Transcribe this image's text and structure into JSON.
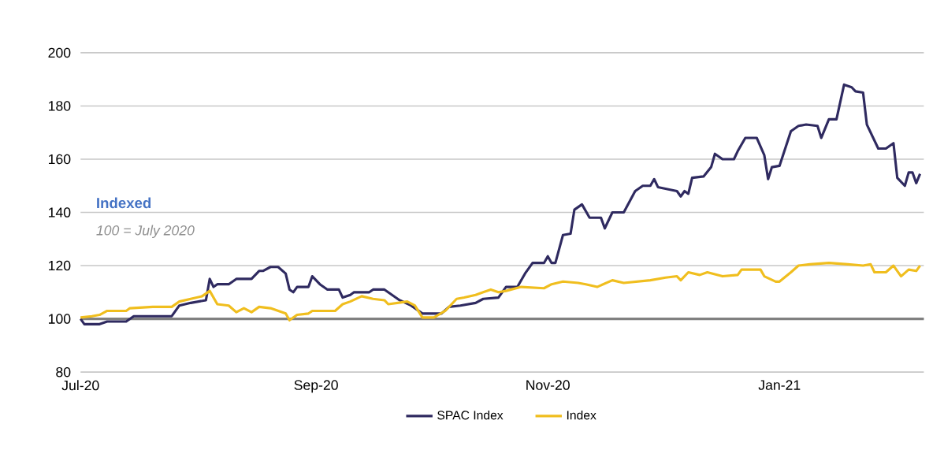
{
  "chart_data": {
    "type": "line",
    "annotations": [
      "Indexed",
      "100 = July 2020"
    ],
    "xlim": [
      "2020-07-01",
      "2021-02-08"
    ],
    "xticks": [
      {
        "value": "2020-07-01",
        "label": "Jul-20"
      },
      {
        "value": "2020-09-01",
        "label": "Sep-20"
      },
      {
        "value": "2020-11-01",
        "label": "Nov-20"
      },
      {
        "value": "2021-01-01",
        "label": "Jan-21"
      }
    ],
    "ylim": [
      80,
      200
    ],
    "yticks": [
      80,
      100,
      120,
      140,
      160,
      180,
      200
    ],
    "grid": "y",
    "legend": "bottom",
    "line_style": "solid",
    "ref_lines": [
      {
        "axis": "y",
        "value": 100,
        "color": "#808080"
      }
    ],
    "series": [
      {
        "name": "SPAC Index",
        "color": "#2f2a60",
        "x": [
          "2020-07-01",
          "2020-07-02",
          "2020-07-06",
          "2020-07-08",
          "2020-07-13",
          "2020-07-15",
          "2020-07-19",
          "2020-07-25",
          "2020-07-27",
          "2020-07-30",
          "2020-08-03",
          "2020-08-04",
          "2020-08-05",
          "2020-08-06",
          "2020-08-09",
          "2020-08-11",
          "2020-08-15",
          "2020-08-17",
          "2020-08-18",
          "2020-08-20",
          "2020-08-22",
          "2020-08-24",
          "2020-08-25",
          "2020-08-26",
          "2020-08-27",
          "2020-08-30",
          "2020-08-31",
          "2020-09-02",
          "2020-09-04",
          "2020-09-07",
          "2020-09-08",
          "2020-09-10",
          "2020-09-11",
          "2020-09-15",
          "2020-09-16",
          "2020-09-19",
          "2020-09-23",
          "2020-09-26",
          "2020-09-29",
          "2020-09-30",
          "2020-10-04",
          "2020-10-06",
          "2020-10-09",
          "2020-10-13",
          "2020-10-15",
          "2020-10-19",
          "2020-10-21",
          "2020-10-24",
          "2020-10-26",
          "2020-10-28",
          "2020-10-31",
          "2020-11-01",
          "2020-11-02",
          "2020-11-03",
          "2020-11-05",
          "2020-11-07",
          "2020-11-08",
          "2020-11-10",
          "2020-11-12",
          "2020-11-15",
          "2020-11-16",
          "2020-11-18",
          "2020-11-21",
          "2020-11-24",
          "2020-11-26",
          "2020-11-28",
          "2020-11-29",
          "2020-11-30",
          "2020-12-05",
          "2020-12-06",
          "2020-12-07",
          "2020-12-08",
          "2020-12-09",
          "2020-12-12",
          "2020-12-14",
          "2020-12-15",
          "2020-12-17",
          "2020-12-20",
          "2020-12-21",
          "2020-12-23",
          "2020-12-26",
          "2020-12-28",
          "2020-12-29",
          "2020-12-30",
          "2021-01-01",
          "2021-01-04",
          "2021-01-06",
          "2021-01-08",
          "2021-01-11",
          "2021-01-12",
          "2021-01-14",
          "2021-01-16",
          "2021-01-18",
          "2021-01-20",
          "2021-01-21",
          "2021-01-23",
          "2021-01-24",
          "2021-01-27",
          "2021-01-29",
          "2021-01-31",
          "2021-02-01",
          "2021-02-03",
          "2021-02-04",
          "2021-02-05",
          "2021-02-06",
          "2021-02-07"
        ],
        "values": [
          100,
          98,
          98,
          99,
          99,
          101,
          101,
          101,
          105,
          106,
          107,
          115,
          112,
          113,
          113,
          115,
          115,
          118,
          118,
          119.5,
          119.5,
          117,
          111,
          110,
          112,
          112,
          116,
          113,
          111,
          111,
          108,
          109,
          110,
          110,
          111,
          111,
          107,
          105,
          102,
          102,
          102,
          104.5,
          105,
          106,
          107.5,
          108,
          112,
          112,
          117,
          121,
          121,
          123.5,
          121,
          121,
          131.5,
          132,
          141,
          143,
          138,
          138,
          134,
          140,
          140,
          148,
          150,
          150,
          152.5,
          149.5,
          148,
          146,
          148,
          147,
          153,
          153.5,
          157,
          162,
          160,
          160,
          163,
          168,
          168,
          161.5,
          152.5,
          157,
          157.5,
          170.5,
          172.5,
          173,
          172.5,
          168,
          175,
          175,
          188,
          187,
          185.5,
          185,
          173,
          164,
          164,
          166,
          153,
          150,
          155,
          155,
          151,
          154.5
        ]
      },
      {
        "name": "Index",
        "color": "#f0be1e",
        "x": [
          "2020-07-01",
          "2020-07-04",
          "2020-07-06",
          "2020-07-08",
          "2020-07-13",
          "2020-07-14",
          "2020-07-20",
          "2020-07-25",
          "2020-07-27",
          "2020-07-30",
          "2020-08-02",
          "2020-08-04",
          "2020-08-06",
          "2020-08-09",
          "2020-08-11",
          "2020-08-13",
          "2020-08-15",
          "2020-08-17",
          "2020-08-20",
          "2020-08-24",
          "2020-08-25",
          "2020-08-27",
          "2020-08-30",
          "2020-08-31",
          "2020-09-04",
          "2020-09-06",
          "2020-09-08",
          "2020-09-10",
          "2020-09-13",
          "2020-09-16",
          "2020-09-19",
          "2020-09-20",
          "2020-09-25",
          "2020-09-27",
          "2020-09-29",
          "2020-10-02",
          "2020-10-05",
          "2020-10-08",
          "2020-10-10",
          "2020-10-13",
          "2020-10-15",
          "2020-10-17",
          "2020-10-19",
          "2020-10-21",
          "2020-10-25",
          "2020-10-31",
          "2020-11-02",
          "2020-11-05",
          "2020-11-09",
          "2020-11-11",
          "2020-11-14",
          "2020-11-18",
          "2020-11-21",
          "2020-11-28",
          "2020-12-02",
          "2020-12-05",
          "2020-12-06",
          "2020-12-08",
          "2020-12-11",
          "2020-12-13",
          "2020-12-17",
          "2020-12-21",
          "2020-12-22",
          "2020-12-27",
          "2020-12-28",
          "2020-12-31",
          "2021-01-01",
          "2021-01-04",
          "2021-01-06",
          "2021-01-09",
          "2021-01-14",
          "2021-01-19",
          "2021-01-23",
          "2021-01-25",
          "2021-01-26",
          "2021-01-29",
          "2021-01-31",
          "2021-02-02",
          "2021-02-04",
          "2021-02-06",
          "2021-02-07"
        ],
        "values": [
          100.5,
          101,
          101.5,
          103,
          103,
          104,
          104.5,
          104.5,
          106.5,
          107.5,
          108.5,
          110.5,
          105.5,
          105,
          102.5,
          104,
          102.5,
          104.5,
          104,
          102,
          99.5,
          101.5,
          102,
          103,
          103,
          103,
          105.5,
          106.5,
          108.5,
          107.5,
          107,
          105.5,
          106.5,
          105,
          100.5,
          100.5,
          103,
          107.5,
          108,
          109,
          110,
          111,
          110,
          110.5,
          112,
          111.5,
          113,
          114,
          113.5,
          113,
          112,
          114.5,
          113.5,
          114.5,
          115.5,
          116,
          114.5,
          117.5,
          116.5,
          117.5,
          116,
          116.5,
          118.5,
          118.5,
          116,
          114,
          114,
          117.5,
          120,
          120.5,
          121,
          120.5,
          120,
          120.5,
          117.5,
          117.5,
          120,
          116,
          118.5,
          118,
          120
        ]
      }
    ]
  }
}
